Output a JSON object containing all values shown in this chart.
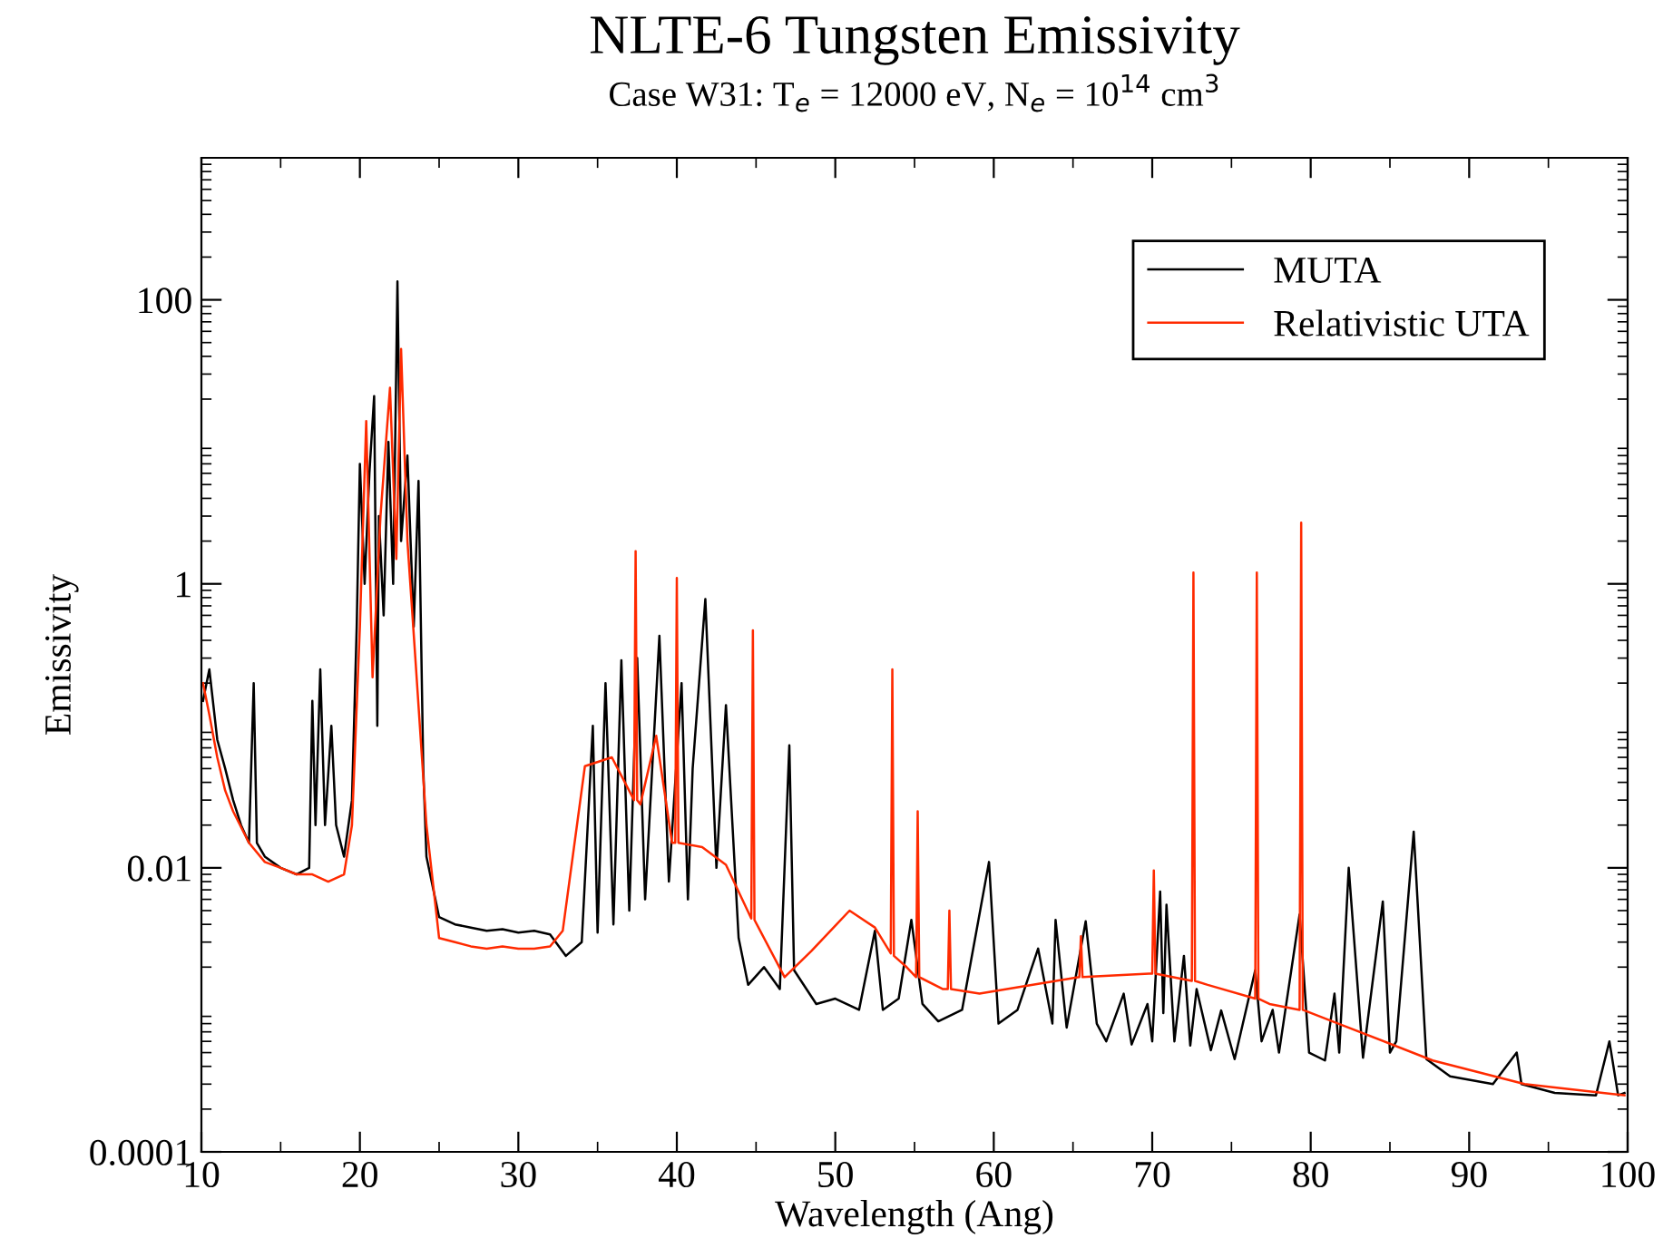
{
  "chart_data": {
    "type": "line",
    "title": "NLTE-6 Tungsten Emissivity",
    "subtitle": "Case W31: T$_{e}$ = 12000 eV, N$_{e}$ = 10$^{14}$ cm$^{3}$",
    "xlabel": "Wavelength (Ang)",
    "ylabel": "Emissivity",
    "log": "y",
    "xlim": [
      10,
      100
    ],
    "ylim": [
      0.0001,
      1000
    ],
    "xticks": [
      10,
      20,
      30,
      40,
      50,
      60,
      70,
      80,
      90,
      100
    ],
    "yticks": [
      0.0001,
      0.01,
      1,
      100
    ],
    "grid": false,
    "legend": "top right",
    "marker": "none",
    "line_style": "solid",
    "series": [
      {
        "name": "MUTA",
        "color": "#000000",
        "x": [
          10.1,
          10.5,
          11.0,
          11.5,
          12.0,
          12.5,
          13.0,
          13.3,
          13.5,
          14.0,
          15.0,
          16.0,
          16.8,
          17.0,
          17.2,
          17.5,
          17.8,
          18.2,
          18.5,
          19.0,
          19.5,
          19.8,
          20.0,
          20.3,
          20.6,
          20.9,
          21.1,
          21.2,
          21.5,
          21.8,
          22.1,
          22.37,
          22.6,
          23.0,
          23.4,
          23.7,
          24.0,
          24.2,
          25.0,
          26.0,
          27.0,
          28.0,
          29.0,
          30.0,
          31.0,
          32.0,
          33.0,
          34.0,
          34.7,
          35.0,
          35.5,
          36.0,
          36.5,
          37.0,
          37.5,
          38.0,
          38.9,
          39.5,
          40.3,
          40.7,
          41.0,
          41.8,
          42.5,
          43.1,
          43.9,
          44.5,
          45.5,
          46.5,
          47.1,
          47.4,
          48.8,
          50.0,
          51.5,
          52.5,
          53.0,
          54.0,
          54.8,
          55.5,
          56.5,
          58.0,
          59.7,
          60.3,
          61.5,
          62.8,
          63.7,
          63.9,
          64.6,
          65.8,
          66.5,
          67.1,
          68.2,
          68.7,
          69.7,
          70.0,
          70.5,
          70.7,
          70.9,
          71.4,
          72.0,
          72.4,
          72.8,
          73.7,
          74.35,
          75.2,
          76.5,
          76.9,
          77.6,
          78.0,
          79.3,
          79.9,
          80.9,
          81.5,
          81.8,
          82.4,
          83.3,
          84.55,
          85.0,
          85.4,
          86.5,
          87.3,
          88.8,
          91.5,
          93.0,
          93.3,
          95.4,
          98.0,
          98.85,
          99.4,
          99.8
        ],
        "values": [
          0.15,
          0.25,
          0.08,
          0.05,
          0.03,
          0.02,
          0.015,
          0.2,
          0.015,
          0.012,
          0.01,
          0.009,
          0.01,
          0.15,
          0.02,
          0.25,
          0.02,
          0.1,
          0.02,
          0.012,
          0.03,
          0.5,
          7,
          1,
          6,
          21,
          0.1,
          3,
          0.6,
          10,
          1,
          135,
          2,
          8,
          0.5,
          5.3,
          0.05,
          0.012,
          0.0045,
          0.004,
          0.0038,
          0.0036,
          0.0037,
          0.0035,
          0.0036,
          0.0034,
          0.0024,
          0.003,
          0.1,
          0.0035,
          0.2,
          0.004,
          0.29,
          0.005,
          0.3,
          0.006,
          0.43,
          0.008,
          0.2,
          0.006,
          0.05,
          0.78,
          0.01,
          0.14,
          0.0032,
          0.0015,
          0.002,
          0.0014,
          0.073,
          0.0019,
          0.0011,
          0.0012,
          0.001,
          0.0036,
          0.001,
          0.0012,
          0.0043,
          0.0011,
          0.00083,
          0.001,
          0.011,
          0.0008,
          0.001,
          0.0027,
          0.0008,
          0.0043,
          0.00075,
          0.0042,
          0.0008,
          0.0006,
          0.0013,
          0.00057,
          0.0011,
          0.0006,
          0.0068,
          0.00095,
          0.0055,
          0.0006,
          0.0024,
          0.00056,
          0.0014,
          0.00052,
          0.00099,
          0.00045,
          0.0019,
          0.0006,
          0.001,
          0.0005,
          0.0047,
          0.0005,
          0.00044,
          0.0013,
          0.0005,
          0.01,
          0.00046,
          0.0058,
          0.0005,
          0.0006,
          0.018,
          0.00045,
          0.00034,
          0.0003,
          0.0005,
          0.0003,
          0.00026,
          0.00025,
          0.0006,
          0.00025,
          0.00026
        ]
      },
      {
        "name": "Relativistic UTA",
        "color": "#ff2a00",
        "x": [
          10.1,
          10.5,
          11.0,
          11.5,
          12.0,
          13.0,
          14.0,
          15.0,
          16.0,
          17.0,
          18.0,
          19.0,
          19.5,
          20.0,
          20.4,
          20.8,
          21.3,
          21.9,
          22.3,
          22.6,
          23.0,
          23.5,
          24.2,
          25.0,
          26.0,
          27.0,
          28.0,
          29.0,
          30.0,
          31.0,
          32.0,
          32.8,
          34.2,
          35.9,
          37.3,
          37.4,
          37.5,
          37.7,
          38.7,
          39.7,
          39.9,
          40.0,
          40.1,
          41.6,
          43.1,
          44.7,
          44.8,
          44.9,
          46.8,
          48.5,
          50.9,
          52.5,
          53.5,
          53.6,
          53.7,
          54.5,
          55.1,
          55.2,
          55.3,
          56.8,
          57.1,
          57.2,
          57.3,
          59.1,
          65.4,
          65.5,
          65.6,
          69.8,
          70.0,
          70.1,
          70.2,
          72.5,
          72.6,
          72.7,
          73.5,
          76.5,
          76.6,
          76.7,
          77.4,
          79.3,
          79.4,
          79.5,
          82.0,
          87.7,
          93.5,
          99.8
        ],
        "values": [
          0.2,
          0.12,
          0.06,
          0.035,
          0.025,
          0.015,
          0.011,
          0.01,
          0.009,
          0.009,
          0.008,
          0.009,
          0.02,
          0.5,
          14,
          0.22,
          3,
          24,
          1.5,
          45,
          2,
          0.3,
          0.02,
          0.0032,
          0.003,
          0.0028,
          0.0027,
          0.0028,
          0.0027,
          0.0027,
          0.0028,
          0.0036,
          0.052,
          0.06,
          0.03,
          1.7,
          0.03,
          0.028,
          0.085,
          0.015,
          0.015,
          1.1,
          0.015,
          0.014,
          0.0105,
          0.0044,
          0.47,
          0.0043,
          0.0017,
          0.0026,
          0.005,
          0.0038,
          0.0025,
          0.25,
          0.0024,
          0.002,
          0.0017,
          0.025,
          0.0017,
          0.0014,
          0.0014,
          0.005,
          0.0014,
          0.0013,
          0.0017,
          0.0033,
          0.0017,
          0.0018,
          0.0018,
          0.0096,
          0.0018,
          0.0016,
          1.2,
          0.0016,
          0.0015,
          0.0012,
          1.2,
          0.0012,
          0.0011,
          0.001,
          2.7,
          0.001,
          0.00078,
          0.00044,
          0.0003,
          0.00025
        ]
      }
    ]
  }
}
